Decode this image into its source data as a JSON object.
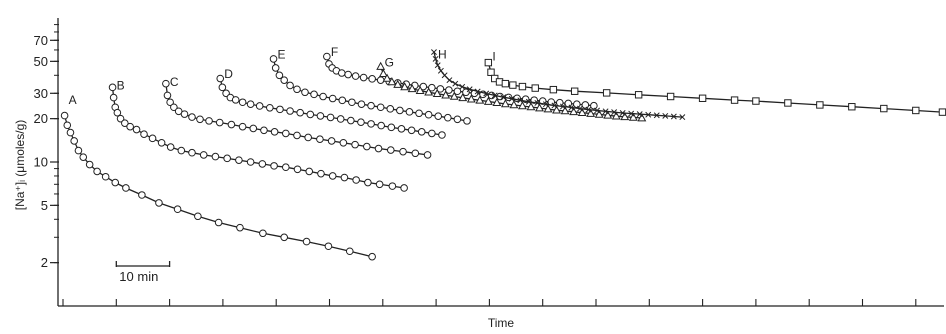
{
  "chart_data": {
    "type": "scatter",
    "title": "",
    "xlabel": "Time",
    "ylabel": "[Na⁺]ᵢ (μmoles/g)",
    "yscale": "log",
    "ylim": [
      1,
      100
    ],
    "y_ticks": [
      {
        "value": 2,
        "label": "2"
      },
      {
        "value": 5,
        "label": "5"
      },
      {
        "value": 10,
        "label": "10"
      },
      {
        "value": 20,
        "label": "20"
      },
      {
        "value": 30,
        "label": "30"
      },
      {
        "value": 50,
        "label": "50"
      },
      {
        "value": 70,
        "label": "70"
      }
    ],
    "x_unit": "min",
    "xlim": [
      0,
      165
    ],
    "grid": false,
    "legend": "none",
    "scale_bar": {
      "label": "10 min",
      "length_min": 10,
      "start_min": 10
    },
    "series": [
      {
        "name": "A",
        "marker": "circle",
        "label_y": 27,
        "x": [
          0.3,
          0.8,
          1.4,
          2.1,
          2.9,
          3.8,
          5.0,
          6.4,
          8.0,
          9.8,
          11.8,
          14.8,
          18.0,
          21.5,
          25.3,
          29.2,
          33.2,
          37.5,
          41.5,
          45.7,
          49.8,
          53.8,
          58.0
        ],
        "y": [
          21,
          18,
          16,
          14,
          12,
          10.8,
          9.6,
          8.6,
          7.9,
          7.2,
          6.6,
          5.9,
          5.2,
          4.7,
          4.2,
          3.8,
          3.5,
          3.2,
          3.0,
          2.8,
          2.6,
          2.4,
          2.2
        ]
      },
      {
        "name": "B",
        "marker": "circle",
        "label_y": 34,
        "x": [
          9.3,
          9.5,
          9.8,
          10.2,
          10.8,
          11.6,
          12.6,
          13.8,
          15.2,
          16.8,
          18.5,
          20.2,
          22.2,
          24.2,
          26.4,
          28.6,
          30.8,
          33.0,
          35.2,
          37.4,
          39.6,
          41.8,
          44.0,
          46.2,
          48.4,
          50.6,
          52.8,
          55.0,
          57.2,
          59.4,
          61.8,
          64.0
        ],
        "y": [
          33,
          28,
          24,
          22,
          20,
          18.6,
          17.6,
          16.8,
          15.6,
          14.6,
          13.6,
          12.7,
          12.0,
          11.6,
          11.2,
          10.9,
          10.6,
          10.3,
          10.0,
          9.7,
          9.4,
          9.2,
          8.9,
          8.6,
          8.3,
          8.0,
          7.8,
          7.5,
          7.2,
          7.0,
          6.8,
          6.6
        ]
      },
      {
        "name": "C",
        "marker": "circle",
        "label_y": 36,
        "x": [
          19.3,
          19.6,
          20.1,
          20.8,
          21.7,
          22.8,
          24.2,
          25.7,
          27.4,
          29.4,
          31.6,
          33.7,
          35.7,
          37.7,
          39.7,
          41.8,
          43.9,
          46.0,
          48.2,
          50.4,
          52.6,
          54.8,
          57.0,
          59.2,
          61.5,
          63.8,
          66.1,
          68.4
        ],
        "y": [
          35,
          29,
          26,
          24,
          22.5,
          21.5,
          20.5,
          19.8,
          19.3,
          18.8,
          18.2,
          17.6,
          17.1,
          16.6,
          16.2,
          15.8,
          15.3,
          14.8,
          14.4,
          14.0,
          13.6,
          13.2,
          12.8,
          12.4,
          12.1,
          11.8,
          11.5,
          11.2
        ]
      },
      {
        "name": "D",
        "marker": "circle",
        "label_y": 41,
        "x": [
          29.5,
          29.9,
          30.6,
          31.4,
          32.4,
          33.7,
          35.2,
          36.9,
          38.8,
          40.7,
          42.6,
          44.5,
          46.4,
          48.3,
          50.2,
          52.1,
          54.0,
          55.9,
          57.8,
          59.7,
          61.6,
          63.5,
          65.4,
          67.3,
          69.2,
          71.1
        ],
        "y": [
          38,
          33,
          30,
          28,
          27,
          26,
          25.2,
          24.5,
          23.8,
          23.2,
          22.6,
          22.0,
          21.4,
          20.9,
          20.4,
          19.9,
          19.4,
          18.9,
          18.4,
          17.9,
          17.4,
          17.0,
          16.6,
          16.2,
          15.8,
          15.4
        ]
      },
      {
        "name": "E",
        "marker": "circle",
        "label_y": 56,
        "x": [
          39.5,
          39.9,
          40.6,
          41.5,
          42.6,
          43.9,
          45.4,
          47.1,
          48.8,
          50.6,
          52.4,
          54.2,
          56.0,
          57.8,
          59.6,
          61.4,
          63.2,
          65.0,
          66.8,
          68.6,
          70.4,
          72.2,
          74.0,
          75.8
        ],
        "y": [
          52,
          45,
          40,
          37,
          34,
          32,
          30.5,
          29.5,
          28.5,
          27.6,
          26.8,
          26.0,
          25.2,
          24.6,
          24.0,
          23.4,
          22.8,
          22.3,
          21.8,
          21.3,
          20.8,
          20.3,
          19.8,
          19.3
        ]
      },
      {
        "name": "F",
        "marker": "circle",
        "label_y": 58,
        "x": [
          49.5,
          49.9,
          50.5,
          51.3,
          52.3,
          53.5,
          54.9,
          56.4,
          58.0,
          59.6,
          61.2,
          62.8,
          64.4,
          66.0,
          67.6,
          69.2,
          70.8,
          72.4,
          74.0,
          75.6,
          77.2,
          78.8,
          80.4,
          82.0,
          83.6,
          85.2,
          86.8,
          88.4,
          90.0,
          91.6,
          93.2,
          94.8,
          96.4,
          98.0,
          99.6
        ],
        "y": [
          54,
          48,
          45,
          43,
          41.5,
          40.5,
          39.5,
          38.6,
          37.8,
          37.0,
          36.2,
          35.4,
          34.7,
          34.0,
          33.4,
          32.8,
          32.2,
          31.6,
          31.0,
          30.5,
          30.0,
          29.5,
          29.0,
          28.5,
          28.1,
          27.7,
          27.3,
          26.9,
          26.5,
          26.1,
          25.8,
          25.5,
          25.2,
          24.9,
          24.6
        ]
      },
      {
        "name": "G",
        "marker": "triangle",
        "label_y": 49,
        "x": [
          59.6,
          60.1,
          60.8,
          61.7,
          62.8,
          64.1,
          65.5,
          67.0,
          68.6,
          70.2,
          71.8,
          73.4,
          75.0,
          76.6,
          78.2,
          79.8,
          81.4,
          83.0,
          84.6,
          86.2,
          87.8,
          89.4,
          91.0,
          92.6,
          94.2,
          95.8,
          97.4,
          99.0,
          100.6,
          102.2,
          103.8,
          105.4,
          107.0,
          108.6
        ],
        "y": [
          46,
          41,
          38,
          36,
          34.5,
          33.2,
          32.2,
          31.3,
          30.5,
          29.8,
          29.1,
          28.5,
          27.9,
          27.3,
          26.8,
          26.3,
          25.8,
          25.3,
          24.9,
          24.5,
          24.1,
          23.7,
          23.3,
          22.9,
          22.6,
          22.3,
          22.0,
          21.7,
          21.4,
          21.1,
          20.8,
          20.6,
          20.4,
          20.2
        ]
      },
      {
        "name": "H",
        "marker": "cross",
        "label_y": 56,
        "x": [
          69.6,
          69.9,
          70.3,
          70.9,
          71.6,
          72.5,
          73.6,
          74.9,
          76.3,
          77.8,
          79.4,
          81.0,
          82.6,
          84.2,
          85.8,
          87.4,
          89.0,
          90.6,
          92.2,
          93.8,
          95.4,
          97.0,
          98.6,
          100.2,
          101.8,
          103.4,
          105.0,
          106.6,
          108.2,
          109.8,
          111.4,
          113.0,
          114.6,
          116.2
        ],
        "y": [
          58,
          52,
          47,
          43,
          40,
          37,
          35,
          33.3,
          32.0,
          30.9,
          29.9,
          29.0,
          28.2,
          27.5,
          26.8,
          26.2,
          25.7,
          25.2,
          24.7,
          24.3,
          23.9,
          23.5,
          23.1,
          22.8,
          22.5,
          22.2,
          21.9,
          21.7,
          21.5,
          21.3,
          21.1,
          20.9,
          20.7,
          20.5
        ]
      },
      {
        "name": "I",
        "marker": "square",
        "label_y": 54,
        "x": [
          79.8,
          80.3,
          81.0,
          81.9,
          83.0,
          84.4,
          86.2,
          88.6,
          92.0,
          96.0,
          102.0,
          108.0,
          114.0,
          120.0,
          126.0,
          130.0,
          136.0,
          142.0,
          148.0,
          154.0,
          160.0,
          165.0
        ],
        "y": [
          49,
          42,
          38,
          36,
          35,
          34.2,
          33.4,
          32.6,
          31.8,
          31.0,
          30.2,
          29.3,
          28.5,
          27.7,
          26.9,
          26.5,
          25.7,
          24.9,
          24.2,
          23.5,
          22.8,
          22.2
        ]
      }
    ]
  }
}
